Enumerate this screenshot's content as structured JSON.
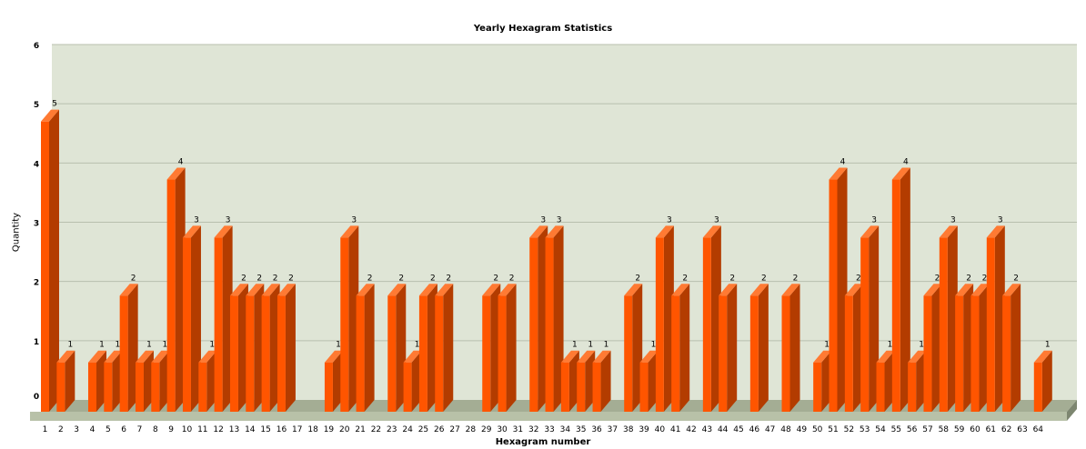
{
  "chart_data": {
    "type": "bar",
    "title": "Yearly Hexagram Statistics",
    "xlabel": "Hexagram number",
    "ylabel": "Quantity",
    "ylim": [
      0,
      6
    ],
    "y_ticks": [
      "0",
      "1",
      "2",
      "3",
      "4",
      "5",
      "6"
    ],
    "categories": [
      "1",
      "2",
      "3",
      "4",
      "5",
      "6",
      "7",
      "8",
      "9",
      "10",
      "11",
      "12",
      "13",
      "14",
      "15",
      "16",
      "17",
      "18",
      "19",
      "20",
      "21",
      "22",
      "23",
      "24",
      "25",
      "26",
      "27",
      "28",
      "29",
      "30",
      "31",
      "32",
      "33",
      "34",
      "35",
      "36",
      "37",
      "38",
      "39",
      "40",
      "41",
      "42",
      "43",
      "44",
      "45",
      "46",
      "47",
      "48",
      "49",
      "50",
      "51",
      "52",
      "53",
      "54",
      "55",
      "56",
      "57",
      "58",
      "59",
      "60",
      "61",
      "62",
      "63",
      "64"
    ],
    "values": [
      5,
      1,
      0,
      1,
      1,
      2,
      1,
      1,
      4,
      3,
      1,
      3,
      2,
      2,
      2,
      2,
      0,
      0,
      1,
      3,
      2,
      0,
      2,
      1,
      2,
      2,
      0,
      0,
      2,
      2,
      0,
      3,
      3,
      1,
      1,
      1,
      0,
      2,
      1,
      3,
      2,
      0,
      3,
      2,
      0,
      2,
      0,
      2,
      0,
      1,
      4,
      2,
      3,
      1,
      4,
      1,
      2,
      3,
      2,
      2,
      3,
      2,
      0,
      1
    ],
    "grid": true,
    "legend": "none",
    "colors": {
      "bar_front": "#ff5500",
      "bar_side": "#b33c00",
      "bar_top": "#ff7a33",
      "plot_bg": "#dfe5d6",
      "floor": "#a4ad94",
      "gridline": "#b8bfae"
    }
  }
}
